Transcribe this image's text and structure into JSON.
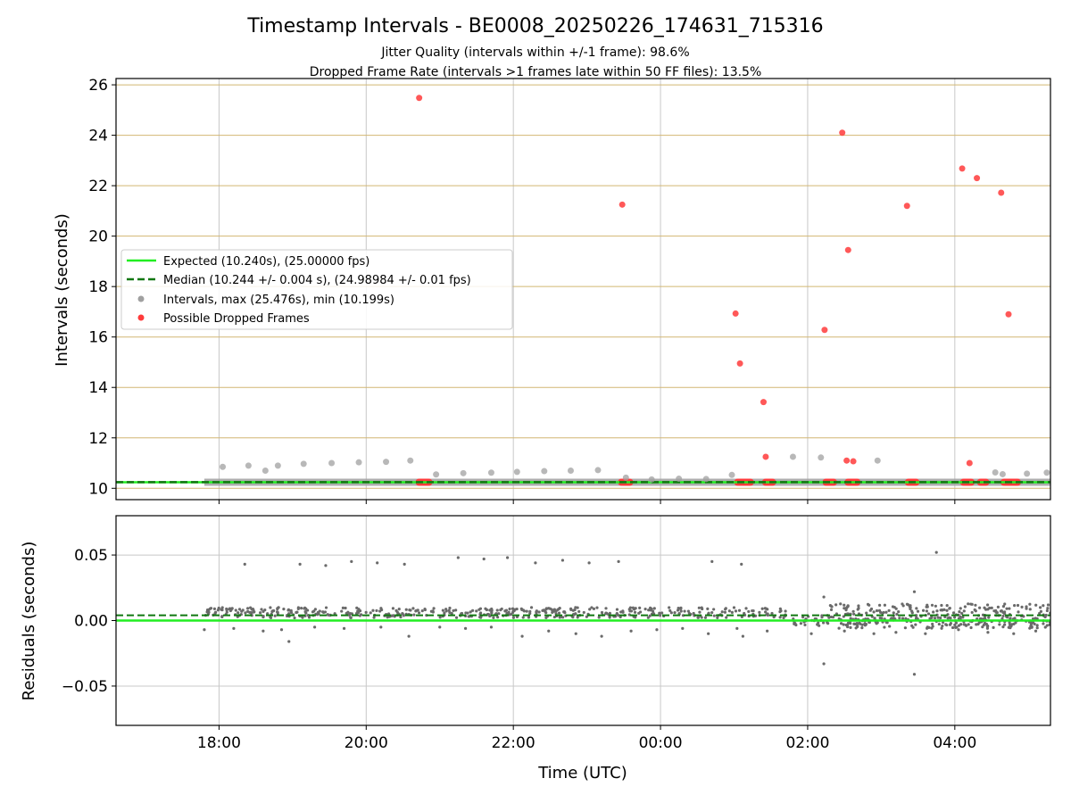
{
  "header": {
    "title": "Timestamp Intervals - BE0008_20250226_174631_715316",
    "subtitle_1": "Jitter Quality (intervals within +/-1 frame): 98.6%",
    "subtitle_2": "Dropped Frame Rate (intervals >1 frames late within 50 FF files): 13.5%"
  },
  "colors": {
    "expected": "#22ee22",
    "median": "#117711",
    "intervals": "#a0a0a0",
    "dropped": "#ff3b3b",
    "hgrid_top": "#d2b672",
    "grid": "#c8c8c8",
    "residuals": "#6a6a6a"
  },
  "chart_data": [
    {
      "type": "scatter",
      "panel": "intervals",
      "xlabel": "",
      "ylabel": "Intervals (seconds)",
      "x_unit": "hours since 00:00 UTC (negative = previous day)",
      "xlim": [
        -3.4,
        9.3
      ],
      "ylim": [
        9.55,
        26.25
      ],
      "yticks": [
        10,
        12,
        14,
        16,
        18,
        20,
        22,
        24,
        26
      ],
      "ytick_labels": [
        "10",
        "12",
        "14",
        "16",
        "18",
        "20",
        "22",
        "24",
        "26"
      ],
      "grid": "on",
      "legend_position": "middle-left",
      "expected_line": {
        "name": "Expected (10.240s), (25.00000 fps)",
        "y": 10.24
      },
      "median_line": {
        "name": "Median (10.244 +/- 0.004 s), (24.98984 +/- 0.01 fps)",
        "y": 10.244
      },
      "series": [
        {
          "name": "Intervals, max (25.476s), min (10.199s)",
          "band": {
            "x_start": -2.2,
            "x_end": 9.3,
            "y": 10.24
          },
          "points": [
            {
              "x": -1.95,
              "y": 10.85
            },
            {
              "x": -1.6,
              "y": 10.9
            },
            {
              "x": -1.37,
              "y": 10.7
            },
            {
              "x": -1.2,
              "y": 10.9
            },
            {
              "x": -0.85,
              "y": 10.97
            },
            {
              "x": -0.47,
              "y": 11.0
            },
            {
              "x": -0.1,
              "y": 11.03
            },
            {
              "x": 0.27,
              "y": 11.05
            },
            {
              "x": 0.6,
              "y": 11.1
            },
            {
              "x": 0.95,
              "y": 10.55
            },
            {
              "x": 1.32,
              "y": 10.6
            },
            {
              "x": 1.7,
              "y": 10.62
            },
            {
              "x": 2.05,
              "y": 10.65
            },
            {
              "x": 2.42,
              "y": 10.68
            },
            {
              "x": 2.78,
              "y": 10.7
            },
            {
              "x": 3.15,
              "y": 10.72
            },
            {
              "x": 3.53,
              "y": 10.42
            },
            {
              "x": 3.88,
              "y": 10.35
            },
            {
              "x": 4.25,
              "y": 10.38
            },
            {
              "x": 4.62,
              "y": 10.37
            },
            {
              "x": 4.97,
              "y": 10.53
            },
            {
              "x": 5.8,
              "y": 11.25
            },
            {
              "x": 6.18,
              "y": 11.22
            },
            {
              "x": 6.95,
              "y": 11.1
            },
            {
              "x": 8.55,
              "y": 10.63
            },
            {
              "x": 8.98,
              "y": 10.58
            },
            {
              "x": 9.25,
              "y": 10.62
            },
            {
              "x": 8.65,
              "y": 10.56
            }
          ]
        },
        {
          "name": "Possible Dropped Frames",
          "points": [
            {
              "x": 0.72,
              "y": 25.48
            },
            {
              "x": 3.48,
              "y": 21.25
            },
            {
              "x": 5.02,
              "y": 16.93
            },
            {
              "x": 5.08,
              "y": 14.95
            },
            {
              "x": 5.4,
              "y": 13.42
            },
            {
              "x": 5.43,
              "y": 11.25
            },
            {
              "x": 6.23,
              "y": 16.28
            },
            {
              "x": 6.47,
              "y": 24.1
            },
            {
              "x": 6.55,
              "y": 19.45
            },
            {
              "x": 6.53,
              "y": 11.1
            },
            {
              "x": 6.62,
              "y": 11.07
            },
            {
              "x": 7.35,
              "y": 21.2
            },
            {
              "x": 8.1,
              "y": 22.68
            },
            {
              "x": 8.3,
              "y": 22.3
            },
            {
              "x": 8.63,
              "y": 21.72
            },
            {
              "x": 8.73,
              "y": 16.9
            },
            {
              "x": 8.2,
              "y": 11.0
            }
          ],
          "clusters_at_baseline": [
            {
              "x_start": 0.67,
              "x_end": 0.9,
              "y": 10.24
            },
            {
              "x_start": 3.42,
              "x_end": 3.63,
              "y": 10.24
            },
            {
              "x_start": 5.0,
              "x_end": 5.27,
              "y": 10.24
            },
            {
              "x_start": 5.38,
              "x_end": 5.57,
              "y": 10.24
            },
            {
              "x_start": 6.2,
              "x_end": 6.4,
              "y": 10.24
            },
            {
              "x_start": 6.5,
              "x_end": 6.72,
              "y": 10.24
            },
            {
              "x_start": 7.32,
              "x_end": 7.52,
              "y": 10.24
            },
            {
              "x_start": 8.07,
              "x_end": 8.27,
              "y": 10.24
            },
            {
              "x_start": 8.3,
              "x_end": 8.47,
              "y": 10.24
            },
            {
              "x_start": 8.62,
              "x_end": 8.9,
              "y": 10.24
            }
          ]
        }
      ]
    },
    {
      "type": "scatter",
      "panel": "residuals",
      "xlabel": "Time (UTC)",
      "ylabel": "Residuals (seconds)",
      "xlim": [
        -3.4,
        9.3
      ],
      "ylim": [
        -0.08,
        0.08
      ],
      "xticks": [
        -2,
        0,
        2,
        4,
        6,
        8
      ],
      "xtick_labels": [
        "18:00",
        "20:00",
        "22:00",
        "00:00",
        "02:00",
        "04:00"
      ],
      "yticks": [
        0.05,
        0.0,
        -0.05
      ],
      "ytick_labels": [
        "0.05",
        "0.00",
        "−0.05"
      ],
      "grid": "on",
      "expected_line": {
        "y": 0.0
      },
      "median_line": {
        "y": 0.004
      },
      "series": [
        {
          "name": "Residuals",
          "band_segments": [
            {
              "x_start": -2.2,
              "x_end": 5.7,
              "y": 0.006,
              "spread": 0.004
            },
            {
              "x_start": 5.8,
              "x_end": 6.3,
              "y": 0.0,
              "spread": 0.004
            },
            {
              "x_start": 6.3,
              "x_end": 9.3,
              "y": 0.007,
              "spread": 0.006
            },
            {
              "x_start": 6.4,
              "x_end": 9.3,
              "y": -0.002,
              "spread": 0.004
            }
          ],
          "points": [
            {
              "x": -1.65,
              "y": 0.043
            },
            {
              "x": -0.9,
              "y": 0.043
            },
            {
              "x": -0.55,
              "y": 0.042
            },
            {
              "x": -0.2,
              "y": 0.045
            },
            {
              "x": 0.15,
              "y": 0.044
            },
            {
              "x": 0.52,
              "y": 0.043
            },
            {
              "x": 1.25,
              "y": 0.048
            },
            {
              "x": 1.6,
              "y": 0.047
            },
            {
              "x": 1.92,
              "y": 0.048
            },
            {
              "x": 2.3,
              "y": 0.044
            },
            {
              "x": 2.67,
              "y": 0.046
            },
            {
              "x": 3.03,
              "y": 0.044
            },
            {
              "x": 3.43,
              "y": 0.045
            },
            {
              "x": 4.7,
              "y": 0.045
            },
            {
              "x": 5.1,
              "y": 0.043
            },
            {
              "x": 7.75,
              "y": 0.052
            },
            {
              "x": 7.45,
              "y": 0.022
            },
            {
              "x": 6.22,
              "y": 0.018
            },
            {
              "x": 6.22,
              "y": -0.033
            },
            {
              "x": 7.45,
              "y": -0.041
            },
            {
              "x": -1.05,
              "y": -0.016
            },
            {
              "x": -2.2,
              "y": -0.007
            },
            {
              "x": -1.8,
              "y": -0.006
            },
            {
              "x": -1.4,
              "y": -0.008
            },
            {
              "x": -1.15,
              "y": -0.007
            },
            {
              "x": -0.7,
              "y": -0.005
            },
            {
              "x": -0.3,
              "y": -0.006
            },
            {
              "x": 0.2,
              "y": -0.005
            },
            {
              "x": 0.58,
              "y": -0.012
            },
            {
              "x": 1.0,
              "y": -0.005
            },
            {
              "x": 1.35,
              "y": -0.006
            },
            {
              "x": 1.7,
              "y": -0.005
            },
            {
              "x": 2.12,
              "y": -0.012
            },
            {
              "x": 2.48,
              "y": -0.008
            },
            {
              "x": 2.85,
              "y": -0.01
            },
            {
              "x": 3.2,
              "y": -0.012
            },
            {
              "x": 3.6,
              "y": -0.008
            },
            {
              "x": 3.95,
              "y": -0.007
            },
            {
              "x": 4.3,
              "y": -0.006
            },
            {
              "x": 4.65,
              "y": -0.01
            },
            {
              "x": 5.04,
              "y": -0.006
            },
            {
              "x": 5.12,
              "y": -0.012
            },
            {
              "x": 5.45,
              "y": -0.008
            },
            {
              "x": 6.05,
              "y": -0.01
            },
            {
              "x": 6.5,
              "y": -0.008
            },
            {
              "x": 6.9,
              "y": -0.01
            },
            {
              "x": 7.2,
              "y": -0.009
            },
            {
              "x": 7.6,
              "y": -0.01
            },
            {
              "x": 8.05,
              "y": -0.007
            },
            {
              "x": 8.45,
              "y": -0.009
            },
            {
              "x": 8.8,
              "y": -0.01
            },
            {
              "x": 9.1,
              "y": -0.008
            }
          ]
        }
      ]
    }
  ]
}
